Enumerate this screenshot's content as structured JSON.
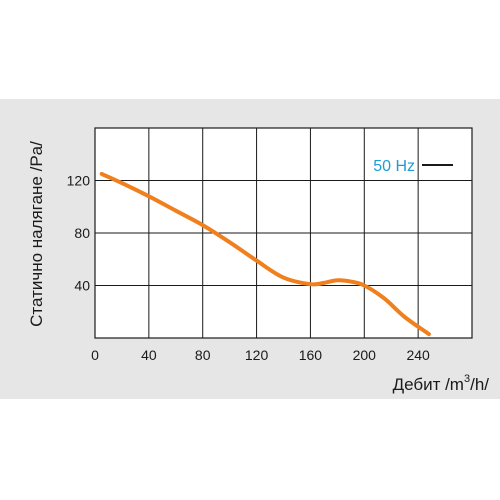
{
  "chart_data": {
    "type": "line",
    "title": "",
    "xlabel": "Дебит /m³/h/",
    "xlabel_parts": {
      "main": "Дебит /m",
      "sup": "3",
      "tail": "/h/"
    },
    "ylabel": "Статично налягане /Pa/",
    "xlim": [
      0,
      280
    ],
    "ylim": [
      0,
      160
    ],
    "xticks": [
      0,
      40,
      80,
      120,
      160,
      200,
      240
    ],
    "yticks": [
      40,
      80,
      120
    ],
    "grid": true,
    "legend_position": "top-right",
    "colors": {
      "series": "#f07f1e",
      "legend_text": "#1f9bd6",
      "band": "#e6e6e6"
    },
    "series": [
      {
        "name": "50 Hz",
        "x": [
          5,
          20,
          40,
          60,
          80,
          100,
          120,
          140,
          160,
          170,
          180,
          190,
          200,
          215,
          230,
          248
        ],
        "y": [
          125,
          118,
          108,
          97,
          86,
          73,
          59,
          46,
          41,
          42,
          44,
          43,
          40,
          30,
          16,
          3
        ]
      }
    ]
  }
}
